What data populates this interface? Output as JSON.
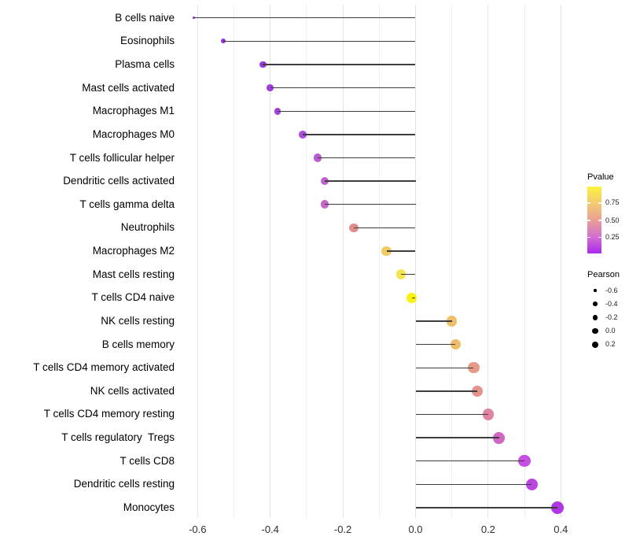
{
  "chart_data": {
    "type": "scatter",
    "subtype": "lollipop",
    "title": "",
    "xlabel": "",
    "ylabel": "",
    "x_ticks": [
      "-0.6",
      "-0.4",
      "-0.2",
      "0.0",
      "0.2",
      "0.4"
    ],
    "x_tick_values": [
      -0.6,
      -0.4,
      -0.2,
      0.0,
      0.2,
      0.4
    ],
    "x_minor_tick_values": [
      -0.5,
      -0.3,
      -0.1,
      0.1,
      0.3
    ],
    "xlim": [
      -0.67,
      0.47
    ],
    "grid": "vertical-only",
    "legend_position": "right",
    "categories": [
      "B cells naive",
      "Eosinophils",
      "Plasma cells",
      "Mast cells activated",
      "Macrophages M1",
      "Macrophages M0",
      "T cells follicular helper",
      "Dendritic cells activated",
      "T cells gamma delta",
      "Neutrophils",
      "Macrophages M2",
      "Mast cells resting",
      "T cells CD4 naive",
      "NK cells resting",
      "B cells memory",
      "T cells CD4 memory activated",
      "NK cells activated",
      "T cells CD4 memory resting",
      "T cells regulatory  Tregs",
      "T cells CD8",
      "Dendritic cells resting",
      "Monocytes"
    ],
    "series": [
      {
        "name": "Pearson correlation vs cell type (color = Pvalue, size = Pearson)",
        "points": [
          {
            "label": "B cells naive",
            "pearson": -0.61,
            "pvalue_approx": 0.02,
            "color": "#8D2BD6",
            "radius_px": 1.8
          },
          {
            "label": "Eosinophils",
            "pearson": -0.53,
            "pvalue_approx": 0.04,
            "color": "#9530DC",
            "radius_px": 3.0
          },
          {
            "label": "Plasma cells",
            "pearson": -0.42,
            "pvalue_approx": 0.06,
            "color": "#9C39DC",
            "radius_px": 4.2
          },
          {
            "label": "Mast cells activated",
            "pearson": -0.4,
            "pvalue_approx": 0.07,
            "color": "#9E3CDC",
            "radius_px": 4.3
          },
          {
            "label": "Macrophages M1",
            "pearson": -0.38,
            "pvalue_approx": 0.09,
            "color": "#A343DB",
            "radius_px": 4.4
          },
          {
            "label": "Macrophages M0",
            "pearson": -0.31,
            "pvalue_approx": 0.13,
            "color": "#AD4DDA",
            "radius_px": 4.8
          },
          {
            "label": "T cells follicular helper",
            "pearson": -0.27,
            "pvalue_approx": 0.2,
            "color": "#B95AD1",
            "radius_px": 5.2
          },
          {
            "label": "Dendritic cells activated",
            "pearson": -0.25,
            "pvalue_approx": 0.25,
            "color": "#C163CD",
            "radius_px": 5.3
          },
          {
            "label": "T cells gamma delta",
            "pearson": -0.25,
            "pvalue_approx": 0.27,
            "color": "#C367C8",
            "radius_px": 5.4
          },
          {
            "label": "Neutrophils",
            "pearson": -0.17,
            "pvalue_approx": 0.45,
            "color": "#DE8F8B",
            "radius_px": 5.7
          },
          {
            "label": "Macrophages M2",
            "pearson": -0.08,
            "pvalue_approx": 0.73,
            "color": "#F0CB62",
            "radius_px": 6.1
          },
          {
            "label": "Mast cells resting",
            "pearson": -0.04,
            "pvalue_approx": 0.85,
            "color": "#F6E44E",
            "radius_px": 6.3
          },
          {
            "label": "T cells CD4 naive",
            "pearson": -0.01,
            "pvalue_approx": 0.97,
            "color": "#FAF20D",
            "radius_px": 6.4
          },
          {
            "label": "NK cells resting",
            "pearson": 0.1,
            "pvalue_approx": 0.68,
            "color": "#EFBE69",
            "radius_px": 6.8
          },
          {
            "label": "B cells memory",
            "pearson": 0.11,
            "pvalue_approx": 0.67,
            "color": "#EFBC69",
            "radius_px": 6.8
          },
          {
            "label": "T cells CD4 memory activated",
            "pearson": 0.16,
            "pvalue_approx": 0.52,
            "color": "#E59A87",
            "radius_px": 7.1
          },
          {
            "label": "NK cells activated",
            "pearson": 0.17,
            "pvalue_approx": 0.5,
            "color": "#E4948E",
            "radius_px": 7.1
          },
          {
            "label": "T cells CD4 memory resting",
            "pearson": 0.2,
            "pvalue_approx": 0.42,
            "color": "#DF84A4",
            "radius_px": 7.2
          },
          {
            "label": "T cells regulatory  Tregs",
            "pearson": 0.23,
            "pvalue_approx": 0.33,
            "color": "#D266C4",
            "radius_px": 7.4
          },
          {
            "label": "T cells CD8",
            "pearson": 0.3,
            "pvalue_approx": 0.22,
            "color": "#C44FE2",
            "radius_px": 7.7
          },
          {
            "label": "Dendritic cells resting",
            "pearson": 0.32,
            "pvalue_approx": 0.17,
            "color": "#BB46DF",
            "radius_px": 7.8
          },
          {
            "label": "Monocytes",
            "pearson": 0.39,
            "pvalue_approx": 0.1,
            "color": "#B136E6",
            "radius_px": 8.1
          }
        ]
      }
    ],
    "legend_pvalue": {
      "title": "Pvalue",
      "ticks": [
        "0.75",
        "0.50",
        "0.25"
      ],
      "tick_values": [
        0.75,
        0.5,
        0.25
      ],
      "gradient_top_to_bottom": [
        "#FBF53C",
        "#F3CB72",
        "#E9A093",
        "#D26FD0",
        "#AC28EE"
      ]
    },
    "legend_pearson": {
      "title": "Pearson",
      "entries": [
        {
          "label": "-0.6",
          "radius_px": 1.6
        },
        {
          "label": "-0.4",
          "radius_px": 2.8
        },
        {
          "label": "-0.2",
          "radius_px": 3.3
        },
        {
          "label": "0.0",
          "radius_px": 3.8
        },
        {
          "label": "0.2",
          "radius_px": 4.2
        }
      ]
    },
    "stem_color": "#3D3D3D",
    "colors": {
      "background": "#FFFFFF",
      "grid_major": "#E3E3E3",
      "grid_minor": "#EFEFEF",
      "axis_text": "#2E2E2E",
      "label_text": "#000000"
    }
  }
}
